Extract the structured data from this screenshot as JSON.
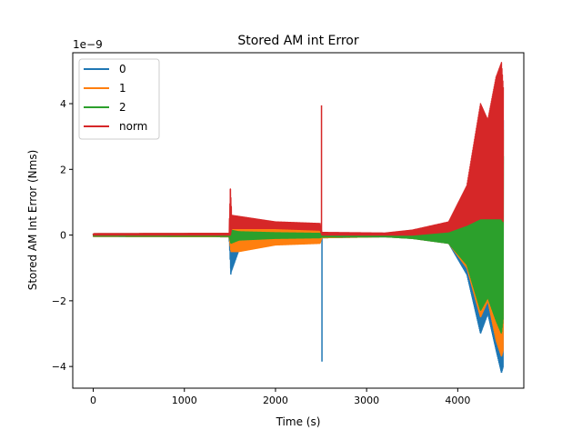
{
  "chart_data": {
    "type": "line",
    "title": "Stored AM int Error",
    "xlabel": "Time (s)",
    "ylabel": "Stored AM Int Error (Nms)",
    "y_scale_label": "1e−9",
    "y_scale": 1e-09,
    "xlim": [
      -225,
      4725
    ],
    "ylim": [
      -4.66e-09,
      5.55e-09
    ],
    "x_ticks": [
      0,
      1000,
      2000,
      3000,
      4000
    ],
    "y_ticks": [
      -4,
      -2,
      0,
      2,
      4
    ],
    "x_tick_labels": [
      "0",
      "1000",
      "2000",
      "3000",
      "4000"
    ],
    "y_tick_labels": [
      "−4",
      "−2",
      "0",
      "2",
      "4"
    ],
    "legend_position": "upper-left",
    "series": [
      {
        "name": "0",
        "color": "#1f77b4",
        "style": "oscillating-band",
        "envelope": [
          [
            0,
            4e-11,
            -4e-11
          ],
          [
            1490,
            5e-11,
            -5e-11
          ],
          [
            1510,
            5e-10,
            -1.15e-09
          ],
          [
            1600,
            3.5e-10,
            -4.5e-10
          ],
          [
            2000,
            2e-10,
            -2.5e-10
          ],
          [
            2490,
            1.5e-10,
            -2e-10
          ],
          [
            2510,
            6e-11,
            -8e-11
          ],
          [
            3200,
            3e-11,
            -5e-11
          ],
          [
            3500,
            1e-10,
            -1e-10
          ],
          [
            3900,
            2e-10,
            -2.5e-10
          ],
          [
            4100,
            8e-10,
            -1.2e-09
          ],
          [
            4250,
            2.5e-09,
            -3e-09
          ],
          [
            4330,
            2.2e-09,
            -2.4e-09
          ],
          [
            4420,
            3.5e-09,
            -3.5e-09
          ],
          [
            4480,
            3.9e-09,
            -4.2e-09
          ],
          [
            4500,
            3.5e-09,
            -4e-09
          ]
        ],
        "spikes": [
          [
            1510,
            -1.2e-09
          ],
          [
            2510,
            -3.85e-09
          ]
        ]
      },
      {
        "name": "1",
        "color": "#ff7f0e",
        "style": "oscillating-band",
        "envelope": [
          [
            0,
            4e-11,
            -4e-11
          ],
          [
            1490,
            5e-11,
            -5e-11
          ],
          [
            1510,
            6e-10,
            -5e-10
          ],
          [
            1600,
            3e-10,
            -5e-10
          ],
          [
            2000,
            2e-10,
            -3e-10
          ],
          [
            2490,
            1.5e-10,
            -2.5e-10
          ],
          [
            2510,
            5e-11,
            -8e-11
          ],
          [
            3200,
            3e-11,
            -5e-11
          ],
          [
            3500,
            1e-10,
            -1e-10
          ],
          [
            3900,
            2e-10,
            -2.5e-10
          ],
          [
            4100,
            8e-10,
            -1e-09
          ],
          [
            4250,
            2.5e-09,
            -2.5e-09
          ],
          [
            4330,
            2e-09,
            -2e-09
          ],
          [
            4420,
            3.2e-09,
            -3.2e-09
          ],
          [
            4480,
            3.6e-09,
            -3.7e-09
          ],
          [
            4500,
            3.2e-09,
            -3.5e-09
          ]
        ],
        "spikes": []
      },
      {
        "name": "2",
        "color": "#2ca02c",
        "style": "oscillating-band",
        "envelope": [
          [
            0,
            3e-11,
            -3e-11
          ],
          [
            1490,
            4e-11,
            -4e-11
          ],
          [
            1510,
            1.5e-10,
            -2.5e-10
          ],
          [
            1600,
            1e-10,
            -1.5e-10
          ],
          [
            2000,
            7e-11,
            -1e-10
          ],
          [
            2490,
            5e-11,
            -8e-11
          ],
          [
            2510,
            4e-11,
            -6e-11
          ],
          [
            3200,
            3e-11,
            -5e-11
          ],
          [
            3500,
            1e-10,
            -1e-10
          ],
          [
            3900,
            1.5e-10,
            -2.5e-10
          ],
          [
            4100,
            7e-10,
            -9e-10
          ],
          [
            4250,
            2e-09,
            -2.3e-09
          ],
          [
            4330,
            1.8e-09,
            -1.9e-09
          ],
          [
            4420,
            2.5e-09,
            -2.6e-09
          ],
          [
            4480,
            2.9e-09,
            -3e-09
          ],
          [
            4500,
            2.4e-09,
            -2.5e-09
          ]
        ],
        "spikes": []
      },
      {
        "name": "norm",
        "color": "#d62728",
        "style": "positive-band",
        "envelope": [
          [
            0,
            4e-11,
            0.0
          ],
          [
            1490,
            5e-11,
            0.0
          ],
          [
            1505,
            1.4e-09,
            0.0
          ],
          [
            1520,
            6e-10,
            2e-10
          ],
          [
            2000,
            4e-10,
            2e-10
          ],
          [
            2490,
            3.5e-10,
            1.5e-10
          ],
          [
            2510,
            8e-11,
            0.0
          ],
          [
            3200,
            6e-11,
            0.0
          ],
          [
            3500,
            1.5e-10,
            0.0
          ],
          [
            3900,
            4e-10,
            1e-10
          ],
          [
            4100,
            1.5e-09,
            3e-10
          ],
          [
            4250,
            4e-09,
            5e-10
          ],
          [
            4330,
            3.5e-09,
            5e-10
          ],
          [
            4420,
            4.8e-09,
            5e-10
          ],
          [
            4480,
            5.25e-09,
            5e-10
          ],
          [
            4500,
            4.5e-09,
            4e-10
          ]
        ],
        "spikes": [
          [
            1505,
            1.4e-09
          ],
          [
            2505,
            3.95e-09
          ]
        ]
      }
    ]
  }
}
